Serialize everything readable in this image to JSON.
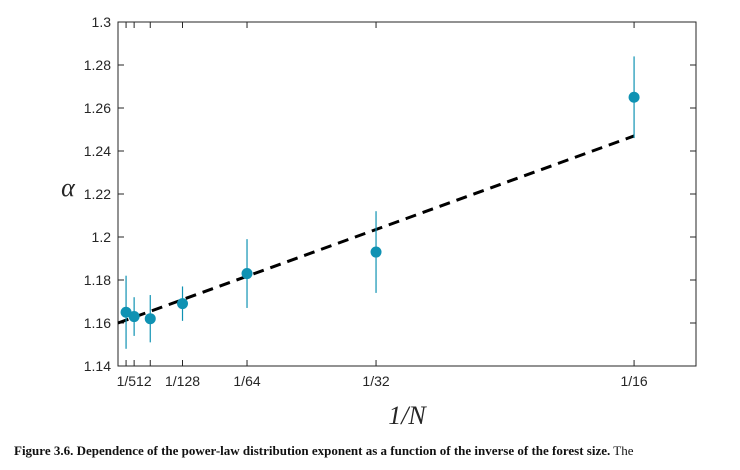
{
  "chart_data": {
    "type": "scatter",
    "title": "",
    "xlabel": "1/N",
    "ylabel": "α",
    "xlim": [
      0,
      0.07
    ],
    "ylim": [
      1.14,
      1.3
    ],
    "x_ticks": [
      {
        "value": 0.001953125,
        "label": "1/512"
      },
      {
        "value": 0.0078125,
        "label": "1/128"
      },
      {
        "value": 0.015625,
        "label": "1/64"
      },
      {
        "value": 0.03125,
        "label": "1/32"
      },
      {
        "value": 0.0625,
        "label": "1/16"
      }
    ],
    "x_minor_ticks": [
      0.0009765625,
      0.00390625
    ],
    "y_ticks": [
      {
        "value": 1.14,
        "label": "1.14"
      },
      {
        "value": 1.16,
        "label": "1.16"
      },
      {
        "value": 1.18,
        "label": "1.18"
      },
      {
        "value": 1.2,
        "label": "1.2"
      },
      {
        "value": 1.22,
        "label": "1.22"
      },
      {
        "value": 1.24,
        "label": "1.24"
      },
      {
        "value": 1.26,
        "label": "1.26"
      },
      {
        "value": 1.28,
        "label": "1.28"
      },
      {
        "value": 1.3,
        "label": "1.3"
      }
    ],
    "grid": false,
    "points": [
      {
        "x": 0.0009765625,
        "y": 1.165,
        "err": 0.017
      },
      {
        "x": 0.001953125,
        "y": 1.163,
        "err": 0.009
      },
      {
        "x": 0.00390625,
        "y": 1.162,
        "err": 0.011
      },
      {
        "x": 0.0078125,
        "y": 1.169,
        "err": 0.008
      },
      {
        "x": 0.015625,
        "y": 1.183,
        "err": 0.016
      },
      {
        "x": 0.03125,
        "y": 1.193,
        "err": 0.019
      },
      {
        "x": 0.0625,
        "y": 1.265,
        "err": 0.019
      }
    ],
    "fit_line": {
      "x": [
        0,
        0.0625
      ],
      "y": [
        1.16,
        1.247
      ]
    },
    "colors": {
      "points": "#0f92b3",
      "fit": "#000000",
      "axis": "#262626"
    }
  },
  "caption": {
    "lead": "Figure 3.6.  Dependence of the power-law distribution exponent as a function of the inverse of the forest size.",
    "rest": " The"
  }
}
